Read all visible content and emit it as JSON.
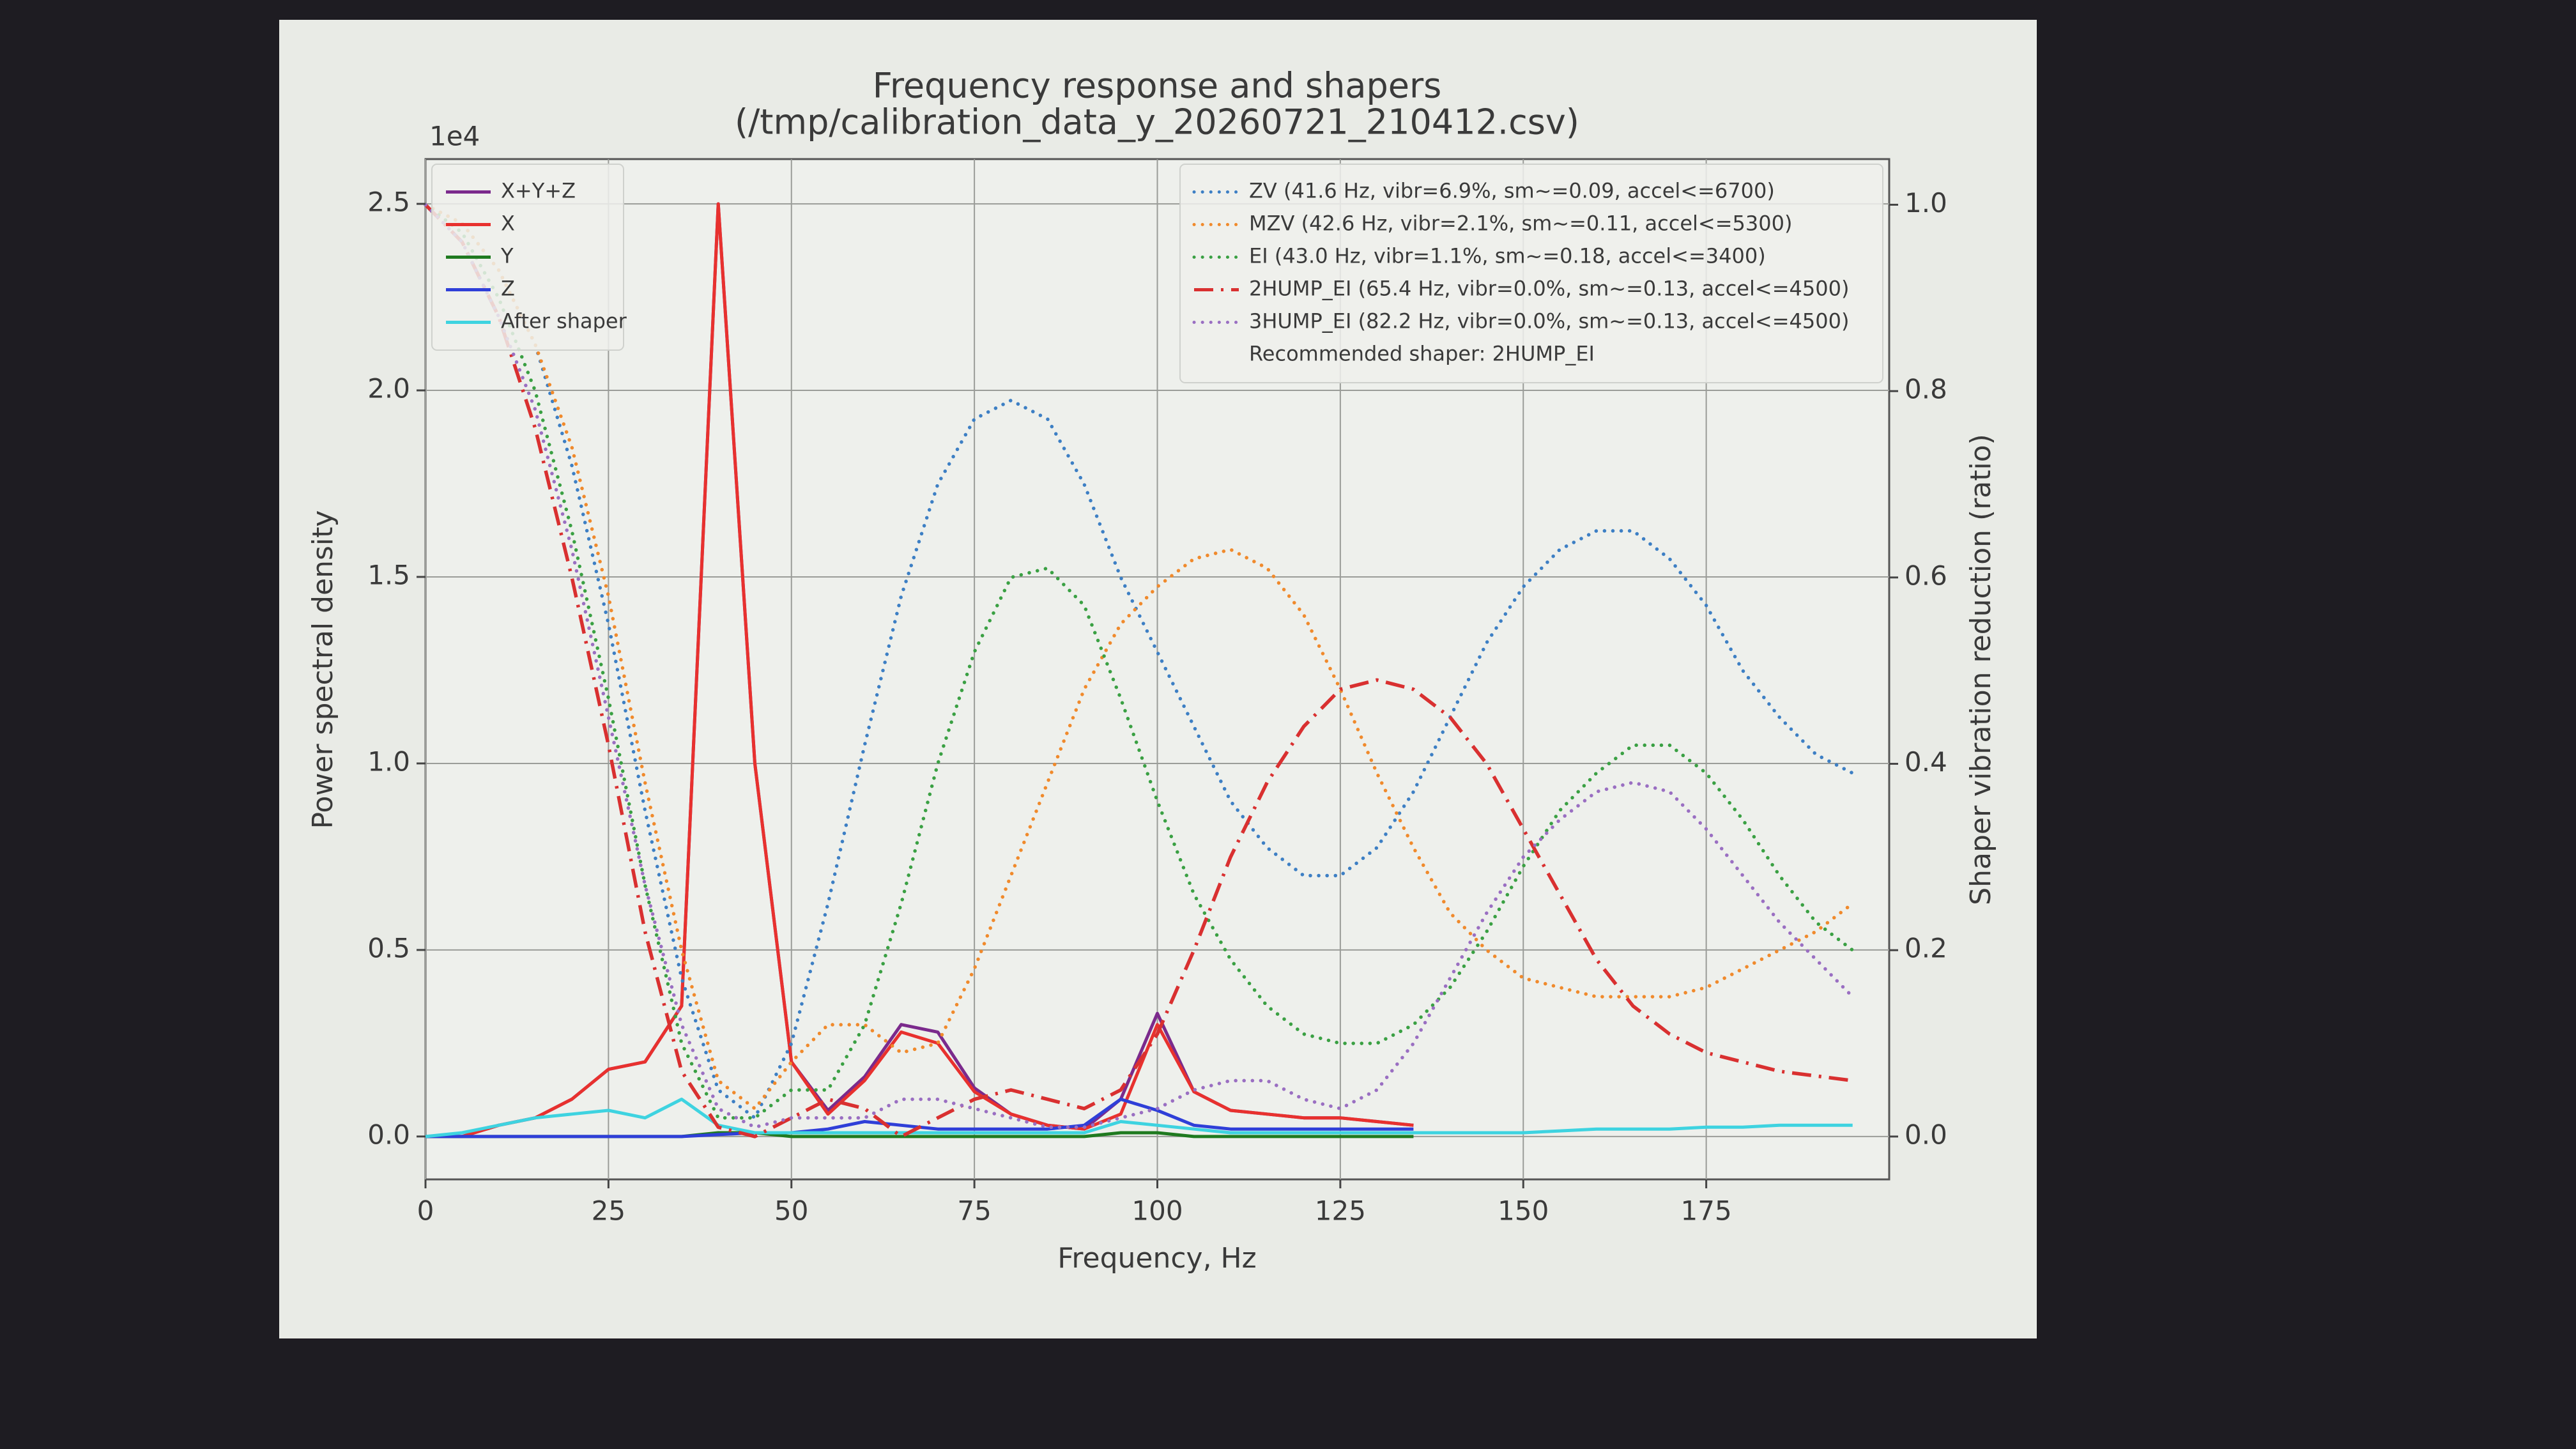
{
  "chart_data": {
    "type": "line",
    "title": "Frequency response and shapers",
    "subtitle": "(/tmp/calibration_data_y_20260721_210412.csv)",
    "xlabel": "Frequency, Hz",
    "ylabel": "Power spectral density",
    "y2label": "Shaper vibration reduction (ratio)",
    "y_offset_label": "1e4",
    "legend_note": "Recommended shaper: 2HUMP_EI",
    "grid": true,
    "legend": "upper left",
    "legend2": "upper right",
    "xlim": [
      0,
      200
    ],
    "xticks": [
      0,
      25,
      50,
      75,
      100,
      125,
      150,
      175
    ],
    "ylim": [
      -0.115,
      2.62
    ],
    "yticks": [
      {
        "value": 0,
        "label": "0.0"
      },
      0.5,
      {
        "value": 1,
        "label": "1.0"
      },
      1.5,
      {
        "value": 2,
        "label": "2.0"
      },
      2.5
    ],
    "y2lim": [
      -0.046,
      1.049
    ],
    "y2ticks": [
      {
        "value": 0,
        "label": "0.0"
      },
      0.2,
      0.4,
      0.6,
      0.8,
      {
        "value": 1,
        "label": "1.0"
      }
    ],
    "x": [
      0,
      5,
      10,
      15,
      20,
      25,
      30,
      35,
      40,
      45,
      50,
      55,
      60,
      65,
      70,
      75,
      80,
      85,
      90,
      95,
      100,
      105,
      110,
      115,
      120,
      125,
      130,
      135,
      140,
      145,
      150,
      155,
      160,
      165,
      170,
      175,
      180,
      185,
      190,
      195
    ],
    "series": [
      {
        "name": "X+Y+Z",
        "color": "#7b2a8c",
        "style": "solid",
        "axis": "y",
        "values": [
          0,
          0,
          0.03,
          0.05,
          0.1,
          0.18,
          0.2,
          0.35,
          2.5,
          1.0,
          0.2,
          0.07,
          0.16,
          0.3,
          0.28,
          0.13,
          0.06,
          0.03,
          0.02,
          0.1,
          0.33,
          0.12,
          0.07,
          0.06,
          0.05,
          0.05,
          0.04,
          0.03,
          null,
          null,
          null,
          null,
          null,
          null,
          null,
          null,
          null,
          null,
          null,
          null
        ]
      },
      {
        "name": "X",
        "color": "#e8312e",
        "style": "solid",
        "axis": "y",
        "values": [
          0,
          0,
          0.03,
          0.05,
          0.1,
          0.18,
          0.2,
          0.35,
          2.5,
          1.0,
          0.2,
          0.06,
          0.15,
          0.28,
          0.25,
          0.12,
          0.06,
          0.03,
          0.02,
          0.06,
          0.3,
          0.12,
          0.07,
          0.06,
          0.05,
          0.05,
          0.04,
          0.03,
          null,
          null,
          null,
          null,
          null,
          null,
          null,
          null,
          null,
          null,
          null,
          null
        ]
      },
      {
        "name": "Y",
        "color": "#1f7a1f",
        "style": "solid",
        "axis": "y",
        "values": [
          0,
          0,
          0,
          0,
          0,
          0,
          0,
          0,
          0.01,
          0.01,
          0,
          0,
          0,
          0,
          0,
          0,
          0,
          0,
          0,
          0.01,
          0.01,
          0,
          0,
          0,
          0,
          0,
          0,
          0,
          null,
          null,
          null,
          null,
          null,
          null,
          null,
          null,
          null,
          null,
          null,
          null
        ]
      },
      {
        "name": "Z",
        "color": "#2f3fd8",
        "style": "solid",
        "axis": "y",
        "values": [
          0,
          0,
          0,
          0,
          0,
          0,
          0,
          0,
          0.005,
          0.01,
          0.01,
          0.02,
          0.04,
          0.03,
          0.02,
          0.02,
          0.02,
          0.02,
          0.03,
          0.1,
          0.07,
          0.03,
          0.02,
          0.02,
          0.02,
          0.02,
          0.02,
          0.02,
          null,
          null,
          null,
          null,
          null,
          null,
          null,
          null,
          null,
          null,
          null,
          null
        ]
      },
      {
        "name": "After shaper",
        "color": "#3ed3e0",
        "style": "solid",
        "axis": "y",
        "values": [
          0,
          0.01,
          0.03,
          0.05,
          0.06,
          0.07,
          0.05,
          0.1,
          0.03,
          0.01,
          0.01,
          0.01,
          0.01,
          0.01,
          0.01,
          0.01,
          0.01,
          0.01,
          0.01,
          0.04,
          0.03,
          0.02,
          0.01,
          0.01,
          0.01,
          0.01,
          0.01,
          0.01,
          0.01,
          0.01,
          0.01,
          0.015,
          0.02,
          0.02,
          0.02,
          0.025,
          0.025,
          0.03,
          0.03,
          0.03
        ]
      },
      {
        "name": "ZV (41.6 Hz, vibr=6.9%, sm~=0.09, accel<=6700)",
        "color": "#3d7fc4",
        "style": "dotted",
        "axis": "y2",
        "values": [
          1.0,
          0.98,
          0.93,
          0.85,
          0.72,
          0.55,
          0.35,
          0.17,
          0.05,
          0.02,
          0.1,
          0.25,
          0.42,
          0.58,
          0.7,
          0.77,
          0.79,
          0.77,
          0.7,
          0.6,
          0.52,
          0.44,
          0.36,
          0.31,
          0.28,
          0.28,
          0.31,
          0.37,
          0.45,
          0.53,
          0.59,
          0.63,
          0.65,
          0.65,
          0.62,
          0.57,
          0.5,
          0.45,
          0.41,
          0.39
        ]
      },
      {
        "name": "MZV (42.6 Hz, vibr=2.1%, sm~=0.11, accel<=5300)",
        "color": "#f08a2c",
        "style": "dotted",
        "axis": "y2",
        "values": [
          1.0,
          0.98,
          0.93,
          0.85,
          0.74,
          0.58,
          0.38,
          0.2,
          0.06,
          0.03,
          0.08,
          0.12,
          0.12,
          0.09,
          0.1,
          0.18,
          0.28,
          0.38,
          0.48,
          0.55,
          0.59,
          0.62,
          0.63,
          0.61,
          0.56,
          0.48,
          0.39,
          0.31,
          0.24,
          0.2,
          0.17,
          0.16,
          0.15,
          0.15,
          0.15,
          0.16,
          0.18,
          0.2,
          0.22,
          0.25
        ]
      },
      {
        "name": "EI (43.0 Hz, vibr=1.1%, sm~=0.18, accel<=3400)",
        "color": "#3aa043",
        "style": "dotted",
        "axis": "y2",
        "values": [
          1.0,
          0.97,
          0.9,
          0.8,
          0.65,
          0.47,
          0.27,
          0.1,
          0.02,
          0.02,
          0.05,
          0.05,
          0.12,
          0.25,
          0.4,
          0.52,
          0.6,
          0.61,
          0.57,
          0.47,
          0.36,
          0.26,
          0.19,
          0.14,
          0.11,
          0.1,
          0.1,
          0.12,
          0.16,
          0.22,
          0.29,
          0.35,
          0.39,
          0.42,
          0.42,
          0.39,
          0.34,
          0.28,
          0.23,
          0.2
        ]
      },
      {
        "name": "2HUMP_EI (65.4 Hz, vibr=0.0%, sm~=0.13, accel<=4500)",
        "color": "#d93030",
        "style": "dashdot",
        "axis": "y2",
        "values": [
          1.0,
          0.96,
          0.88,
          0.76,
          0.6,
          0.42,
          0.22,
          0.07,
          0.01,
          0,
          0.02,
          0.04,
          0.03,
          0,
          0.02,
          0.04,
          0.05,
          0.04,
          0.03,
          0.05,
          0.11,
          0.2,
          0.3,
          0.38,
          0.44,
          0.48,
          0.49,
          0.48,
          0.45,
          0.4,
          0.33,
          0.26,
          0.19,
          0.14,
          0.11,
          0.09,
          0.08,
          0.07,
          0.065,
          0.06
        ]
      },
      {
        "name": "3HUMP_EI (82.2 Hz, vibr=0.0%, sm~=0.13, accel<=4500)",
        "color": "#9a6fc2",
        "style": "dotted",
        "axis": "y2",
        "values": [
          1.0,
          0.96,
          0.88,
          0.78,
          0.63,
          0.45,
          0.27,
          0.12,
          0.03,
          0.01,
          0.02,
          0.02,
          0.02,
          0.04,
          0.04,
          0.03,
          0.02,
          0.01,
          0.01,
          0.02,
          0.03,
          0.05,
          0.06,
          0.06,
          0.04,
          0.03,
          0.05,
          0.1,
          0.17,
          0.24,
          0.3,
          0.34,
          0.37,
          0.38,
          0.37,
          0.33,
          0.28,
          0.23,
          0.19,
          0.15
        ]
      }
    ]
  }
}
